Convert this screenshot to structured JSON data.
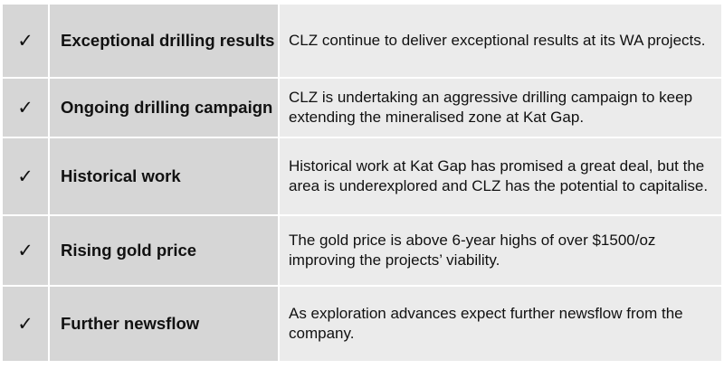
{
  "rows": [
    {
      "check": "✓",
      "title": "Exceptional drilling results",
      "description": "CLZ continue to deliver exceptional results at its WA projects."
    },
    {
      "check": "✓",
      "title": "Ongoing drilling campaign",
      "description": "CLZ is undertaking an aggressive drilling campaign to keep extending the mineralised zone at Kat Gap."
    },
    {
      "check": "✓",
      "title": "Historical work",
      "description": "Historical work at Kat Gap has promised a great deal, but the area is underexplored and CLZ has the potential to capitalise."
    },
    {
      "check": "✓",
      "title": "Rising gold price",
      "description": "The gold price is above 6-year highs of over $1500/oz improving the projects’ viability."
    },
    {
      "check": "✓",
      "title": "Further newsflow",
      "description": "As exploration advances expect further newsflow from the company."
    }
  ],
  "colors": {
    "label_background": "#d6d6d6",
    "description_background": "#ebebeb",
    "divider": "#ffffff"
  }
}
